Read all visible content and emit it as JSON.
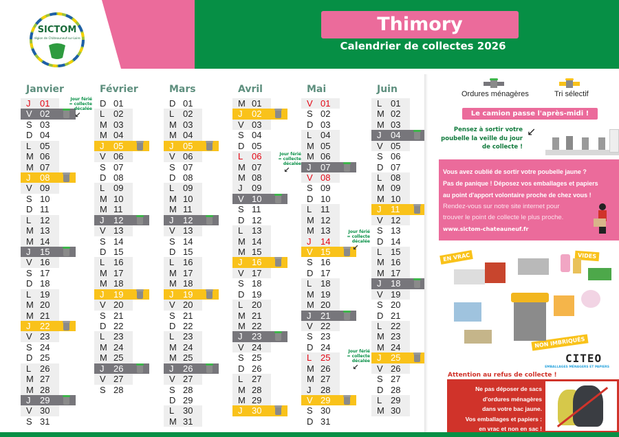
{
  "header": {
    "logo_text": "SICTOM",
    "logo_subtext": "région de Châteauneuf-sur-Loire",
    "commune": "Thimory",
    "subtitle": "Calendrier de collectes 2026"
  },
  "colors": {
    "green": "#068f45",
    "pink": "#eb6b9b",
    "yellow": "#f9c21a",
    "grey_collection": "#77767b",
    "holiday_red": "#e30613"
  },
  "note": {
    "line1": "Jour férié",
    "line2": "= collecte",
    "line3": "décalée"
  },
  "legend": {
    "om_label": "Ordures ménagères",
    "om_icon": "grey-bin-green-lid-icon",
    "tri_label": "Tri sélectif",
    "tri_icon": "grey-bin-yellow-icon"
  },
  "months": [
    {
      "name": "Janvier",
      "days": [
        [
          "J",
          "01",
          "h"
        ],
        [
          "V",
          "02",
          "om"
        ],
        [
          "S",
          "03",
          ""
        ],
        [
          "D",
          "04",
          ""
        ],
        [
          "L",
          "05",
          ""
        ],
        [
          "M",
          "06",
          ""
        ],
        [
          "M",
          "07",
          ""
        ],
        [
          "J",
          "08",
          "tri"
        ],
        [
          "V",
          "09",
          ""
        ],
        [
          "S",
          "10",
          ""
        ],
        [
          "D",
          "11",
          ""
        ],
        [
          "L",
          "12",
          ""
        ],
        [
          "M",
          "13",
          ""
        ],
        [
          "M",
          "14",
          ""
        ],
        [
          "J",
          "15",
          "om"
        ],
        [
          "V",
          "16",
          ""
        ],
        [
          "S",
          "17",
          ""
        ],
        [
          "D",
          "18",
          ""
        ],
        [
          "L",
          "19",
          ""
        ],
        [
          "M",
          "20",
          ""
        ],
        [
          "M",
          "21",
          ""
        ],
        [
          "J",
          "22",
          "tri"
        ],
        [
          "V",
          "23",
          ""
        ],
        [
          "S",
          "24",
          ""
        ],
        [
          "D",
          "25",
          ""
        ],
        [
          "L",
          "26",
          ""
        ],
        [
          "M",
          "27",
          ""
        ],
        [
          "M",
          "28",
          ""
        ],
        [
          "J",
          "29",
          "om"
        ],
        [
          "V",
          "30",
          ""
        ],
        [
          "S",
          "31",
          ""
        ]
      ]
    },
    {
      "name": "Février",
      "days": [
        [
          "D",
          "01",
          ""
        ],
        [
          "L",
          "02",
          ""
        ],
        [
          "M",
          "03",
          ""
        ],
        [
          "M",
          "04",
          ""
        ],
        [
          "J",
          "05",
          "tri"
        ],
        [
          "V",
          "06",
          ""
        ],
        [
          "S",
          "07",
          ""
        ],
        [
          "D",
          "08",
          ""
        ],
        [
          "L",
          "09",
          ""
        ],
        [
          "M",
          "10",
          ""
        ],
        [
          "M",
          "11",
          ""
        ],
        [
          "J",
          "12",
          "om"
        ],
        [
          "V",
          "13",
          ""
        ],
        [
          "S",
          "14",
          ""
        ],
        [
          "D",
          "15",
          ""
        ],
        [
          "L",
          "16",
          ""
        ],
        [
          "M",
          "17",
          ""
        ],
        [
          "M",
          "18",
          ""
        ],
        [
          "J",
          "19",
          "tri"
        ],
        [
          "V",
          "20",
          ""
        ],
        [
          "S",
          "21",
          ""
        ],
        [
          "D",
          "22",
          ""
        ],
        [
          "L",
          "23",
          ""
        ],
        [
          "M",
          "24",
          ""
        ],
        [
          "M",
          "25",
          ""
        ],
        [
          "J",
          "26",
          "om"
        ],
        [
          "V",
          "27",
          ""
        ],
        [
          "S",
          "28",
          ""
        ]
      ]
    },
    {
      "name": "Mars",
      "days": [
        [
          "D",
          "01",
          ""
        ],
        [
          "L",
          "02",
          ""
        ],
        [
          "M",
          "03",
          ""
        ],
        [
          "M",
          "04",
          ""
        ],
        [
          "J",
          "05",
          "tri"
        ],
        [
          "V",
          "06",
          ""
        ],
        [
          "S",
          "07",
          ""
        ],
        [
          "D",
          "08",
          ""
        ],
        [
          "L",
          "09",
          ""
        ],
        [
          "M",
          "10",
          ""
        ],
        [
          "M",
          "11",
          ""
        ],
        [
          "J",
          "12",
          "om"
        ],
        [
          "V",
          "13",
          ""
        ],
        [
          "S",
          "14",
          ""
        ],
        [
          "D",
          "15",
          ""
        ],
        [
          "L",
          "16",
          ""
        ],
        [
          "M",
          "17",
          ""
        ],
        [
          "M",
          "18",
          ""
        ],
        [
          "J",
          "19",
          "tri"
        ],
        [
          "V",
          "20",
          ""
        ],
        [
          "S",
          "21",
          ""
        ],
        [
          "D",
          "22",
          ""
        ],
        [
          "L",
          "23",
          ""
        ],
        [
          "M",
          "24",
          ""
        ],
        [
          "M",
          "25",
          ""
        ],
        [
          "J",
          "26",
          "om"
        ],
        [
          "V",
          "27",
          ""
        ],
        [
          "S",
          "28",
          ""
        ],
        [
          "D",
          "29",
          ""
        ],
        [
          "L",
          "30",
          ""
        ],
        [
          "M",
          "31",
          ""
        ]
      ]
    },
    {
      "name": "Avril",
      "days": [
        [
          "M",
          "01",
          ""
        ],
        [
          "J",
          "02",
          "tri"
        ],
        [
          "V",
          "03",
          ""
        ],
        [
          "S",
          "04",
          ""
        ],
        [
          "D",
          "05",
          ""
        ],
        [
          "L",
          "06",
          "h"
        ],
        [
          "M",
          "07",
          ""
        ],
        [
          "M",
          "08",
          ""
        ],
        [
          "J",
          "09",
          ""
        ],
        [
          "V",
          "10",
          "om"
        ],
        [
          "S",
          "11",
          ""
        ],
        [
          "D",
          "12",
          ""
        ],
        [
          "L",
          "13",
          ""
        ],
        [
          "M",
          "14",
          ""
        ],
        [
          "M",
          "15",
          ""
        ],
        [
          "J",
          "16",
          "tri"
        ],
        [
          "V",
          "17",
          ""
        ],
        [
          "S",
          "18",
          ""
        ],
        [
          "D",
          "19",
          ""
        ],
        [
          "L",
          "20",
          ""
        ],
        [
          "M",
          "21",
          ""
        ],
        [
          "M",
          "22",
          ""
        ],
        [
          "J",
          "23",
          "om"
        ],
        [
          "V",
          "24",
          ""
        ],
        [
          "S",
          "25",
          ""
        ],
        [
          "D",
          "26",
          ""
        ],
        [
          "L",
          "27",
          ""
        ],
        [
          "M",
          "28",
          ""
        ],
        [
          "M",
          "29",
          ""
        ],
        [
          "J",
          "30",
          "tri"
        ]
      ]
    },
    {
      "name": "Mai",
      "days": [
        [
          "V",
          "01",
          "h"
        ],
        [
          "S",
          "02",
          ""
        ],
        [
          "D",
          "03",
          ""
        ],
        [
          "L",
          "04",
          ""
        ],
        [
          "M",
          "05",
          ""
        ],
        [
          "M",
          "06",
          ""
        ],
        [
          "J",
          "07",
          "om"
        ],
        [
          "V",
          "08",
          "h"
        ],
        [
          "S",
          "09",
          ""
        ],
        [
          "D",
          "10",
          ""
        ],
        [
          "L",
          "11",
          ""
        ],
        [
          "M",
          "12",
          ""
        ],
        [
          "M",
          "13",
          ""
        ],
        [
          "J",
          "14",
          "h"
        ],
        [
          "V",
          "15",
          "tri"
        ],
        [
          "S",
          "16",
          ""
        ],
        [
          "D",
          "17",
          ""
        ],
        [
          "L",
          "18",
          ""
        ],
        [
          "M",
          "19",
          ""
        ],
        [
          "M",
          "20",
          ""
        ],
        [
          "J",
          "21",
          "om"
        ],
        [
          "V",
          "22",
          ""
        ],
        [
          "S",
          "23",
          ""
        ],
        [
          "D",
          "24",
          ""
        ],
        [
          "L",
          "25",
          "h"
        ],
        [
          "M",
          "26",
          ""
        ],
        [
          "M",
          "27",
          ""
        ],
        [
          "J",
          "28",
          ""
        ],
        [
          "V",
          "29",
          "tri"
        ],
        [
          "S",
          "30",
          ""
        ],
        [
          "D",
          "31",
          ""
        ]
      ]
    },
    {
      "name": "Juin",
      "days": [
        [
          "L",
          "01",
          ""
        ],
        [
          "M",
          "02",
          ""
        ],
        [
          "M",
          "03",
          ""
        ],
        [
          "J",
          "04",
          "om"
        ],
        [
          "V",
          "05",
          ""
        ],
        [
          "S",
          "06",
          ""
        ],
        [
          "D",
          "07",
          ""
        ],
        [
          "L",
          "08",
          ""
        ],
        [
          "M",
          "09",
          ""
        ],
        [
          "M",
          "10",
          ""
        ],
        [
          "J",
          "11",
          "tri"
        ],
        [
          "V",
          "12",
          ""
        ],
        [
          "S",
          "13",
          ""
        ],
        [
          "D",
          "14",
          ""
        ],
        [
          "L",
          "15",
          ""
        ],
        [
          "M",
          "16",
          ""
        ],
        [
          "M",
          "17",
          ""
        ],
        [
          "J",
          "18",
          "om"
        ],
        [
          "V",
          "19",
          ""
        ],
        [
          "S",
          "20",
          ""
        ],
        [
          "D",
          "21",
          ""
        ],
        [
          "L",
          "22",
          ""
        ],
        [
          "M",
          "23",
          ""
        ],
        [
          "M",
          "24",
          ""
        ],
        [
          "J",
          "25",
          "tri"
        ],
        [
          "V",
          "26",
          ""
        ],
        [
          "S",
          "27",
          ""
        ],
        [
          "D",
          "28",
          ""
        ],
        [
          "L",
          "29",
          ""
        ],
        [
          "M",
          "30",
          ""
        ]
      ]
    }
  ],
  "sidebar": {
    "truck_notice": "Le camion passe l'après-midi !",
    "reminder": [
      "Pensez à sortir votre",
      "poubelle la veille du jour",
      "de collecte !"
    ],
    "info_bold": [
      "Vous avez oublié de sortir votre poubelle jaune ?",
      "Pas de panique ! Déposez vos emballages et papiers",
      "au point d'apport volontaire proche de chez vous !"
    ],
    "info_regular": [
      "Rendez-vous sur notre site internet pour",
      "trouver le point de collecte le plus proche."
    ],
    "website": "www.sictom-chateauneuf.fr",
    "tags": {
      "bulk": "EN VRAC",
      "empty": "VIDES",
      "not_nested": "NON IMBRIQUÉS"
    },
    "citeo_logo": "CITEO",
    "citeo_sub": "EMBALLAGES MÉNAGERS ET PAPIERS",
    "warning_title": "Attention au refus de collecte !",
    "warning_text": [
      "Ne pas déposer de sacs",
      "d'ordures ménagères",
      "dans votre bac jaune.",
      "Vos emballages et papiers :",
      "en vrac et non en sac !"
    ]
  }
}
